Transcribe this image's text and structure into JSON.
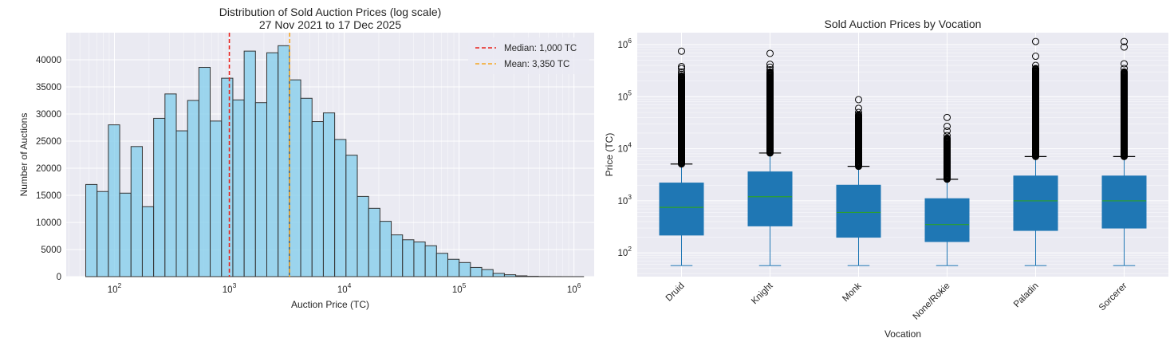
{
  "chart_data": [
    {
      "type": "bar",
      "title": "Distribution of Sold Auction Prices (log scale)",
      "subtitle": "27 Nov 2021 to 17 Dec 2025",
      "xlabel": "Auction Price (TC)",
      "ylabel": "Number of Auctions",
      "x_scale": "log",
      "xlim": [
        38,
        1500000
      ],
      "ylim": [
        0,
        45000
      ],
      "x_ticks": [
        {
          "value": 100,
          "label": "10",
          "exp": "2"
        },
        {
          "value": 1000,
          "label": "10",
          "exp": "3"
        },
        {
          "value": 10000,
          "label": "10",
          "exp": "4"
        },
        {
          "value": 100000,
          "label": "10",
          "exp": "5"
        },
        {
          "value": 1000000,
          "label": "10",
          "exp": "6"
        }
      ],
      "y_ticks": [
        0,
        5000,
        10000,
        15000,
        20000,
        25000,
        30000,
        35000,
        40000
      ],
      "grid": true,
      "bin_edges_log10": [
        1.75,
        1.8485,
        1.947,
        2.0455,
        2.144,
        2.2425,
        2.341,
        2.4395,
        2.538,
        2.6365,
        2.735,
        2.8335,
        2.932,
        3.0305,
        3.129,
        3.2275,
        3.326,
        3.4245,
        3.523,
        3.6215,
        3.72,
        3.8185,
        3.917,
        4.0155,
        4.114,
        4.2125,
        4.311,
        4.4095,
        4.508,
        4.6065,
        4.705,
        4.8035,
        4.902,
        5.0005,
        5.099,
        5.1975,
        5.296,
        5.3945,
        5.493,
        5.5915,
        5.69,
        5.7885,
        5.887,
        5.9855,
        6.084
      ],
      "values": [
        17000,
        15700,
        28000,
        15400,
        24000,
        12900,
        29200,
        33700,
        26900,
        32500,
        38600,
        28700,
        36600,
        32600,
        41600,
        32100,
        41300,
        42600,
        36300,
        32900,
        28600,
        30200,
        25300,
        22400,
        14800,
        12600,
        10200,
        7700,
        6800,
        6400,
        5700,
        4300,
        3200,
        2600,
        1700,
        1300,
        600,
        350,
        150,
        60,
        25,
        10,
        5,
        3
      ],
      "bar_color": "#87CEEB",
      "edge_color": "#333333",
      "reference_lines": [
        {
          "name": "Median: 1,000 TC",
          "value": 1000,
          "color": "#E8221C"
        },
        {
          "name": "Mean: 3,350 TC",
          "value": 3350,
          "color": "#F5A623"
        }
      ],
      "legend_position": "top-right"
    },
    {
      "type": "box",
      "title": "Sold Auction Prices by Vocation",
      "xlabel": "Vocation",
      "ylabel": "Price (TC)",
      "y_scale": "log",
      "ylim": [
        35,
        1700000
      ],
      "y_ticks": [
        {
          "value": 100,
          "label": "10",
          "exp": "2"
        },
        {
          "value": 1000,
          "label": "10",
          "exp": "3"
        },
        {
          "value": 10000,
          "label": "10",
          "exp": "4"
        },
        {
          "value": 100000,
          "label": "10",
          "exp": "5"
        },
        {
          "value": 1000000,
          "label": "10",
          "exp": "6"
        }
      ],
      "grid": true,
      "box_color": "#1F77B4",
      "median_color": "#2CA02C",
      "categories": [
        "Druid",
        "Knight",
        "Monk",
        "None/Rokie",
        "Paladin",
        "Sorcerer"
      ],
      "boxes": [
        {
          "min": 57,
          "q1": 220,
          "median": 750,
          "q3": 2200,
          "whisker_high": 5100,
          "outliers_dense_to": 250000,
          "outliers_top": [
            270000,
            300000,
            350000,
            380000,
            750000
          ]
        },
        {
          "min": 57,
          "q1": 330,
          "median": 1200,
          "q3": 3600,
          "whisker_high": 8300,
          "outliers_dense_to": 300000,
          "outliers_top": [
            330000,
            370000,
            420000,
            680000
          ]
        },
        {
          "min": 57,
          "q1": 200,
          "median": 600,
          "q3": 2000,
          "whisker_high": 4600,
          "outliers_dense_to": 45000,
          "outliers_top": [
            50000,
            60000,
            88000
          ]
        },
        {
          "min": 57,
          "q1": 165,
          "median": 350,
          "q3": 1100,
          "whisker_high": 2600,
          "outliers_dense_to": 16000,
          "outliers_top": [
            18000,
            22000,
            27000,
            40000
          ]
        },
        {
          "min": 57,
          "q1": 270,
          "median": 1000,
          "q3": 3000,
          "whisker_high": 7100,
          "outliers_dense_to": 350000,
          "outliers_top": [
            400000,
            600000,
            1150000
          ]
        },
        {
          "min": 57,
          "q1": 300,
          "median": 1000,
          "q3": 3000,
          "whisker_high": 7100,
          "outliers_dense_to": 300000,
          "outliers_top": [
            350000,
            430000,
            900000,
            1150000
          ]
        }
      ]
    }
  ]
}
